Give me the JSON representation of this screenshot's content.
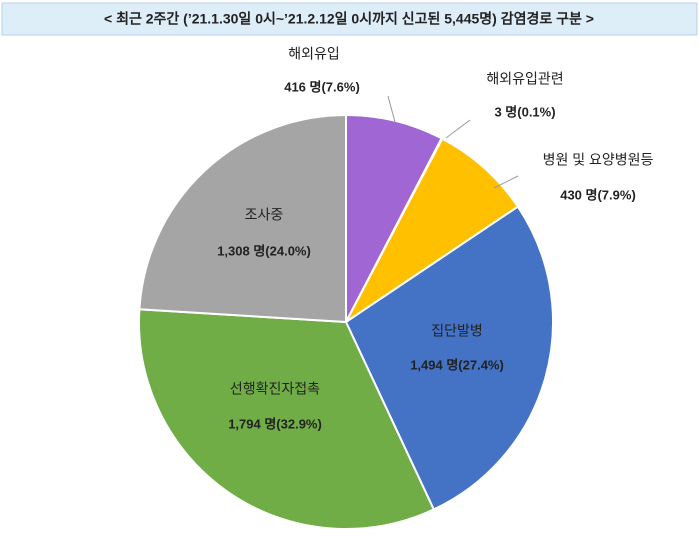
{
  "chart_data": {
    "type": "pie",
    "title": "< 최근 2주간 (’21.1.30일 0시~’21.2.12일 0시까지 신고된 5,445명) 감염경로 구분 >",
    "categories": [
      "해외유입",
      "해외유입관련",
      "병원 및 요양병원등",
      "집단발병",
      "선행확진자접촉",
      "조사중"
    ],
    "values": [
      416,
      3,
      430,
      1494,
      1794,
      1308
    ],
    "value_labels": [
      "416 명(7.6%)",
      "3 명(0.1%)",
      "430 명(7.9%)",
      "1,494 명(27.4%)",
      "1,794 명(32.9%)",
      "1,308 명(24.0%)"
    ],
    "colors": [
      "#a066d3",
      "#7f5fa8",
      "#ffc000",
      "#4472c4",
      "#70ad47",
      "#a5a5a5"
    ]
  }
}
